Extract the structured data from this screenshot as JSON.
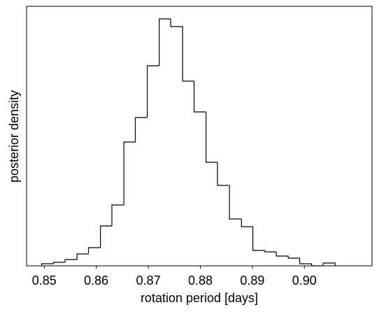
{
  "chart_data": {
    "type": "histogram",
    "xlabel": "rotation period [days]",
    "ylabel": "posterior density",
    "bins": [
      0.8495,
      0.8518,
      0.854,
      0.8563,
      0.8585,
      0.8608,
      0.863,
      0.8653,
      0.8675,
      0.8698,
      0.8721,
      0.8743,
      0.8766,
      0.8788,
      0.8811,
      0.8833,
      0.8856,
      0.8879,
      0.8901,
      0.8924,
      0.8946,
      0.8969,
      0.8991,
      0.9014,
      0.9036,
      0.9059
    ],
    "values": [
      3,
      5,
      9,
      17,
      26,
      57,
      87,
      177,
      212,
      286,
      353,
      342,
      264,
      220,
      148,
      115,
      67,
      56,
      22,
      20,
      14,
      11,
      3,
      0,
      4
    ],
    "color": "#000000",
    "xlim": [
      0.8466,
      0.913
    ],
    "ylim": [
      0,
      371
    ],
    "xticks": [
      0.85,
      0.86,
      0.87,
      0.88,
      0.89,
      {
        "value": 0.9,
        "label": "0.90"
      }
    ]
  }
}
